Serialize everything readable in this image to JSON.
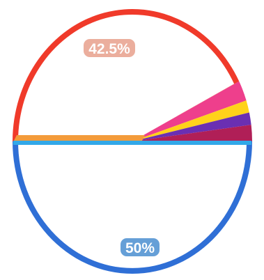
{
  "chart_data": {
    "type": "pie",
    "title": "",
    "start_angle_deg": 180,
    "direction": "clockwise",
    "slices": [
      {
        "value": 42.5,
        "label": "42.5%",
        "color": "#f03a2a",
        "label_bg": "#e8a08c"
      },
      {
        "value": 2.5,
        "label": "",
        "color": "#ee3f8c"
      },
      {
        "value": 1.5,
        "label": "",
        "color": "#ffd21a"
      },
      {
        "value": 1.5,
        "label": "",
        "color": "#6a2fb2"
      },
      {
        "value": 2.0,
        "label": "",
        "color": "#b01f57"
      },
      {
        "value": 50,
        "label": "50%",
        "color": "#2f6fd6",
        "label_bg": "#4a8ed0"
      }
    ],
    "divider_color": "#32a8e8",
    "orange_rim_color": "#f39b3a"
  }
}
